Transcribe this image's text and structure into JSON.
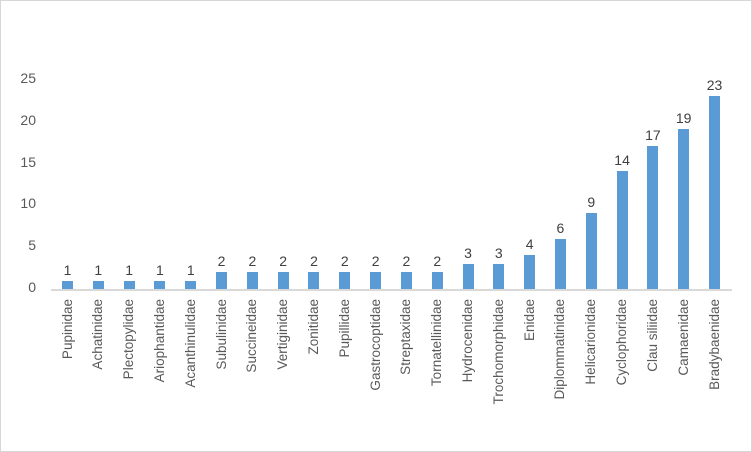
{
  "chart_data": {
    "type": "bar",
    "title": "",
    "xlabel": "",
    "ylabel": "",
    "categories": [
      "Pupinidae",
      "Achatinidae",
      "Plectopylidae",
      "Ariophantidae",
      "Acanthinulidae",
      "Subulinidae",
      "Succineidae",
      "Vertiginidae",
      "Zonitidae",
      "Pupillidae",
      "Gastrocoptidae",
      "Streptaxidae",
      "Tornatellinidae",
      "Hydrocenidae",
      "Trochomorphidae",
      "Enidae",
      "Diplommatinidae",
      "Helicarionidae",
      "Cyclophoridae",
      "Clau siliidae",
      "Camaenidae",
      "Bradybaenidae"
    ],
    "values": [
      1,
      1,
      1,
      1,
      1,
      2,
      2,
      2,
      2,
      2,
      2,
      2,
      2,
      3,
      3,
      4,
      6,
      9,
      14,
      17,
      19,
      23
    ],
    "yticks": [
      0,
      5,
      10,
      15,
      20,
      25
    ],
    "ylim": [
      0,
      25
    ],
    "grid": false,
    "legend": "none",
    "data_labels": true,
    "category_label_rotation_deg": -90,
    "colors": {
      "bar": "#5B9BD5",
      "data_label": "#404040",
      "axis_text": "#595959",
      "axis_line": "#D9D9D9",
      "chart_border": "#D6D6D6",
      "background": "#FFFFFF"
    }
  }
}
